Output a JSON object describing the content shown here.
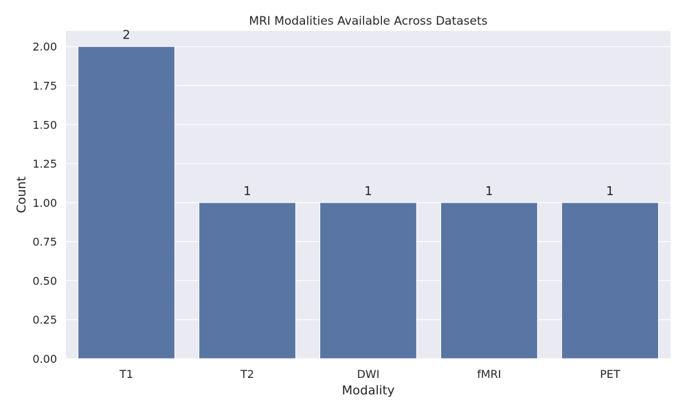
{
  "chart_data": {
    "type": "bar",
    "title": "MRI Modalities Available Across Datasets",
    "xlabel": "Modality",
    "ylabel": "Count",
    "categories": [
      "T1",
      "T2",
      "DWI",
      "fMRI",
      "PET"
    ],
    "values": [
      2,
      1,
      1,
      1,
      1
    ],
    "data_labels": [
      "2",
      "1",
      "1",
      "1",
      "1"
    ],
    "ylim": [
      0,
      2.1
    ],
    "yticks": [
      0,
      0.25,
      0.5,
      0.75,
      1.0,
      1.25,
      1.5,
      1.75,
      2.0
    ],
    "ytick_labels": [
      "0.00",
      "0.25",
      "0.50",
      "0.75",
      "1.00",
      "1.25",
      "1.50",
      "1.75",
      "2.00"
    ],
    "grid": true,
    "legend": "none",
    "colors": {
      "bar": "#5975a4",
      "plot_background": "#eaeaf2",
      "grid": "#ffffff"
    }
  }
}
